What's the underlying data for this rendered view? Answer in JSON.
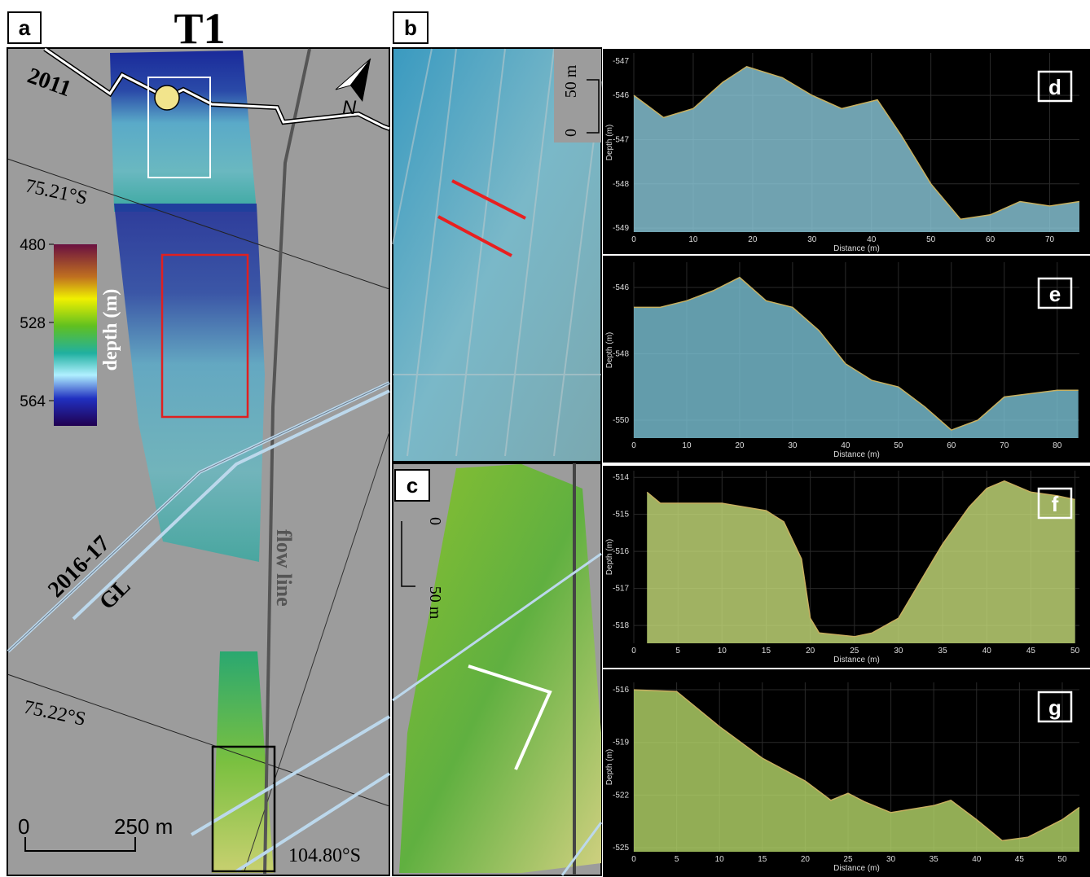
{
  "map": {
    "title": "T1",
    "panel_labels": [
      "a",
      "b",
      "c"
    ],
    "labels": {
      "year_2011": "2011",
      "lat_1": "75.21°S",
      "year_2016": "2016-17",
      "gl": "GL",
      "flow": "flow line",
      "lat_2": "75.22°S",
      "lon": "104.80°S",
      "north": "N"
    },
    "colorbar": {
      "title": "depth (m)",
      "ticks": [
        "480",
        "528",
        "564"
      ]
    },
    "scale_a": [
      "0",
      "250 m"
    ],
    "scale_b": [
      "50 m",
      "0"
    ],
    "scale_c": [
      "0",
      "50 m"
    ]
  },
  "chart_data": [
    {
      "type": "area",
      "panel_label": "d",
      "x_label": "Distance (m)",
      "y_label": "Depth (m)",
      "color": "#8ccbdc",
      "y_top_label": "-547",
      "x": [
        0,
        5,
        10,
        15,
        19,
        25,
        30,
        35,
        38,
        41,
        45,
        50,
        55,
        60,
        65,
        70,
        75
      ],
      "values": [
        -546,
        -546.5,
        -546.3,
        -545.7,
        -545.35,
        -545.6,
        -546.0,
        -546.3,
        -546.2,
        -546.1,
        -546.9,
        -548.0,
        -548.8,
        -548.7,
        -548.4,
        -548.5,
        -548.4
      ],
      "xlim": [
        0,
        75
      ],
      "xticks": [
        0,
        10,
        20,
        30,
        40,
        50,
        60,
        70
      ],
      "ylim": [
        -549.09,
        -545.04
      ],
      "yticks": [
        -546,
        -547,
        -548,
        -549
      ]
    },
    {
      "type": "area",
      "panel_label": "e",
      "x_label": "Distance (m)",
      "y_label": "Depth (m)",
      "color": "#7cc3d6",
      "x": [
        0,
        5,
        10,
        15,
        20,
        25,
        30,
        35,
        40,
        45,
        50,
        55,
        60,
        65,
        70,
        75,
        80,
        84
      ],
      "values": [
        -546.6,
        -546.6,
        -546.4,
        -546.1,
        -545.7,
        -546.4,
        -546.6,
        -547.3,
        -548.3,
        -548.8,
        -549.0,
        -549.6,
        -550.3,
        -550.0,
        -549.3,
        -549.2,
        -549.1,
        -549.1
      ],
      "xlim": [
        0,
        84.2
      ],
      "xticks": [
        0,
        10,
        20,
        30,
        40,
        50,
        60,
        70,
        80
      ],
      "ylim": [
        -550.54,
        -545.24
      ],
      "yticks": [
        -546,
        -548,
        -550
      ]
    },
    {
      "type": "area",
      "panel_label": "f",
      "x_label": "Distance (m)",
      "y_label": "Depth (m)",
      "color": "#c8de7a",
      "x": [
        1.5,
        3,
        5,
        10,
        15,
        17,
        19,
        20,
        21,
        25,
        27,
        30,
        33,
        35,
        38,
        40,
        42,
        45,
        48,
        50
      ],
      "values": [
        -514.4,
        -514.7,
        -514.7,
        -514.7,
        -514.9,
        -515.2,
        -516.2,
        -517.8,
        -518.2,
        -518.3,
        -518.2,
        -517.8,
        -516.6,
        -515.8,
        -514.8,
        -514.3,
        -514.1,
        -514.4,
        -514.5,
        -514.6
      ],
      "xlim": [
        0,
        50.5
      ],
      "xticks": [
        0,
        5,
        10,
        15,
        20,
        25,
        30,
        35,
        40,
        45,
        50
      ],
      "ylim": [
        -518.48,
        -513.82
      ],
      "yticks": [
        -514,
        -515,
        -516,
        -517,
        -518
      ]
    },
    {
      "type": "area",
      "panel_label": "g",
      "x_label": "Distance (m)",
      "y_label": "Depth (m)",
      "color": "#b6d86a",
      "x": [
        0,
        5,
        10,
        15,
        20,
        23,
        25,
        27,
        30,
        35,
        37,
        40,
        43,
        46,
        50,
        52
      ],
      "values": [
        -516,
        -516.1,
        -518.1,
        -519.9,
        -521.2,
        -522.3,
        -521.9,
        -522.4,
        -523.0,
        -522.6,
        -522.3,
        -523.4,
        -524.6,
        -524.4,
        -523.4,
        -522.7
      ],
      "xlim": [
        0,
        52
      ],
      "xticks": [
        0,
        5,
        10,
        15,
        20,
        25,
        30,
        35,
        40,
        45,
        50
      ],
      "ylim": [
        -525.23,
        -515.58
      ],
      "yticks": [
        -516,
        -519,
        -522,
        -525
      ]
    }
  ]
}
